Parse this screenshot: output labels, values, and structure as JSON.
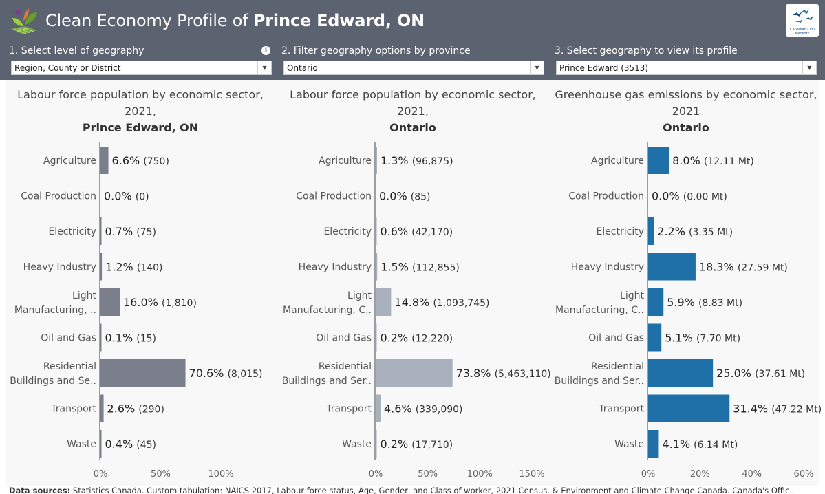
{
  "header": {
    "title_prefix": "Clean Economy Profile of ",
    "title_place": "Prince Edward, ON",
    "logo_text": "Canadian CED Network"
  },
  "filters": [
    {
      "label": "1. Select level of geography",
      "value": "Region, County or District"
    },
    {
      "label": "2. Filter geography options by province",
      "value": "Ontario"
    },
    {
      "label": "3. Select geography to view its profile",
      "value": "Prince Edward (3513)"
    }
  ],
  "colors": {
    "header": "#5b6270",
    "series1": "#7a7f8b",
    "series2": "#a9b1bc",
    "series3": "#1f6fa8"
  },
  "chart_data": [
    {
      "type": "bar",
      "title_line1": "Labour force population by economic sector,",
      "title_line2": "2021,",
      "title_line3": "Prince Edward, ON",
      "categories": [
        "Agriculture",
        "Coal Production",
        "Electricity",
        "Heavy Industry",
        "Light\nManufacturing, ..",
        "Oil and Gas",
        "Residential\nBuildings and Se..",
        "Transport",
        "Waste"
      ],
      "values": [
        6.6,
        0.0,
        0.7,
        1.2,
        16.0,
        0.1,
        70.6,
        2.6,
        0.4
      ],
      "labels": [
        "6.6%",
        "0.0%",
        "0.7%",
        "1.2%",
        "16.0%",
        "0.1%",
        "70.6%",
        "2.6%",
        "0.4%"
      ],
      "counts": [
        "(750)",
        "(0)",
        "(75)",
        "(140)",
        "(1,810)",
        "(15)",
        "(8,015)",
        "(290)",
        "(45)"
      ],
      "ticks": [
        0,
        50,
        100
      ],
      "tick_labels": [
        "0%",
        "50%",
        "100%"
      ],
      "xlim": [
        0,
        100
      ],
      "color": "#7a7f8b"
    },
    {
      "type": "bar",
      "title_line1": "Labour force population by economic sector,",
      "title_line2": "2021,",
      "title_line3": "Ontario",
      "categories": [
        "Agriculture",
        "Coal Production",
        "Electricity",
        "Heavy Industry",
        "Light\nManufacturing, C..",
        "Oil and Gas",
        "Residential\nBuildings and Ser..",
        "Transport",
        "Waste"
      ],
      "values": [
        1.3,
        0.0,
        0.6,
        1.5,
        14.8,
        0.2,
        73.8,
        4.6,
        0.2
      ],
      "labels": [
        "1.3%",
        "0.0%",
        "0.6%",
        "1.5%",
        "14.8%",
        "0.2%",
        "73.8%",
        "4.6%",
        "0.2%"
      ],
      "counts": [
        "(96,875)",
        "(85)",
        "(42,170)",
        "(112,855)",
        "(1,093,745)",
        "(12,220)",
        "(5,463,110)",
        "(339,090)",
        "(17,710)"
      ],
      "ticks": [
        0,
        50,
        100,
        150
      ],
      "tick_labels": [
        "0%",
        "50%",
        "100%",
        "150%"
      ],
      "xlim": [
        0,
        150
      ],
      "color": "#a9b1bc"
    },
    {
      "type": "bar",
      "title_line1": "Greenhouse gas emissions by economic sector,",
      "title_line2": "2021",
      "title_line3": "Ontario",
      "categories": [
        "Agriculture",
        "Coal Production",
        "Electricity",
        "Heavy Industry",
        "Light\nManufacturing, C..",
        "Oil and Gas",
        "Residential\nBuildings and Ser..",
        "Transport",
        "Waste"
      ],
      "values": [
        8.0,
        0.0,
        2.2,
        18.3,
        5.9,
        5.1,
        25.0,
        31.4,
        4.1
      ],
      "labels": [
        "8.0%",
        "0.0%",
        "2.2%",
        "18.3%",
        "5.9%",
        "5.1%",
        "25.0%",
        "31.4%",
        "4.1%"
      ],
      "counts": [
        "(12.11 Mt)",
        "(0.00 Mt)",
        "(3.35 Mt)",
        "(27.59 Mt)",
        "(8.83 Mt)",
        "(7.70 Mt)",
        "(37.61 Mt)",
        "(47.22 Mt)",
        "(6.14 Mt)"
      ],
      "ticks": [
        0,
        20,
        40,
        60
      ],
      "tick_labels": [
        "0%",
        "20%",
        "40%",
        "60%"
      ],
      "xlim": [
        0,
        60
      ],
      "color": "#1f6fa8"
    }
  ],
  "footer": {
    "prefix": "Data sources:",
    "text": " Statistics Canada. Custom tabulation: NAICS 2017, Labour force status, Age, Gender, and Class of worker, 2021 Census. & Environment and Climate Change Canada. Canada's Offic.."
  }
}
